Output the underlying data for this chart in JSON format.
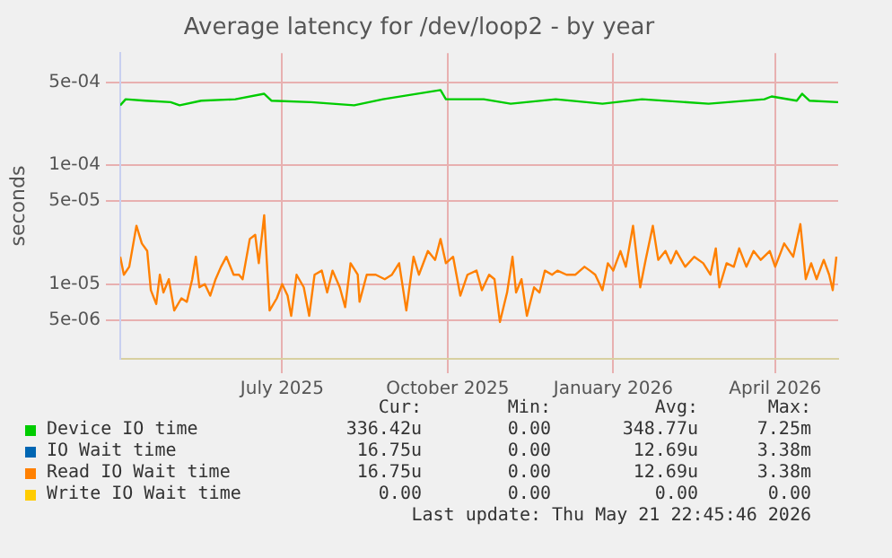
{
  "chart_data": {
    "type": "line",
    "title": "Average latency for /dev/loop2 - by year",
    "ylabel": "seconds",
    "log": "y",
    "grid": true,
    "legend": "bottom",
    "marker": "none",
    "line_style": "solid",
    "xlim": [
      "2025-04-17",
      "2026-05-21"
    ],
    "xticks": [
      {
        "value": "2025-07-16",
        "label": "July 2025"
      },
      {
        "value": "2025-10-16",
        "label": "October 2025"
      },
      {
        "value": "2026-01-16",
        "label": "January 2026"
      },
      {
        "value": "2026-04-16",
        "label": "April 2026"
      }
    ],
    "ylim": [
      2.35e-06,
      0.00088
    ],
    "yticks": [
      {
        "value": 5e-06,
        "label": "5e-06"
      },
      {
        "value": 1e-05,
        "label": "1e-05"
      },
      {
        "value": 5e-05,
        "label": "5e-05"
      },
      {
        "value": 0.0001,
        "label": "1e-04"
      },
      {
        "value": 0.0005,
        "label": "5e-04"
      }
    ],
    "series": [
      {
        "name": "Device IO time",
        "color": "#00cc00",
        "x": [
          "2025-04-17",
          "2025-04-20",
          "2025-05-01",
          "2025-05-15",
          "2025-05-20",
          "2025-06-01",
          "2025-06-20",
          "2025-07-06",
          "2025-07-10",
          "2025-08-01",
          "2025-08-25",
          "2025-09-10",
          "2025-10-12",
          "2025-10-15",
          "2025-11-05",
          "2025-11-20",
          "2025-12-15",
          "2026-01-01",
          "2026-01-10",
          "2026-02-01",
          "2026-03-10",
          "2026-04-10",
          "2026-04-14",
          "2026-04-28",
          "2026-05-01",
          "2026-05-05",
          "2026-05-21"
        ],
        "values": [
          0.00032,
          0.00036,
          0.00035,
          0.00034,
          0.00032,
          0.00035,
          0.00036,
          0.0004,
          0.00035,
          0.00034,
          0.00032,
          0.00036,
          0.00043,
          0.00036,
          0.00036,
          0.00033,
          0.00036,
          0.00034,
          0.00033,
          0.00036,
          0.00033,
          0.00036,
          0.00038,
          0.00035,
          0.0004,
          0.00035,
          0.00034
        ]
      },
      {
        "name": "IO Wait time",
        "color": "#0066b3"
      },
      {
        "name": "Read IO Wait time",
        "color": "#ff8000",
        "x": [
          "2025-04-17",
          "2025-04-19",
          "2025-04-22",
          "2025-04-26",
          "2025-04-29",
          "2025-05-02",
          "2025-05-04",
          "2025-05-07",
          "2025-05-09",
          "2025-05-11",
          "2025-05-14",
          "2025-05-17",
          "2025-05-21",
          "2025-05-24",
          "2025-05-27",
          "2025-05-29",
          "2025-05-31",
          "2025-06-03",
          "2025-06-06",
          "2025-06-09",
          "2025-06-12",
          "2025-06-15",
          "2025-06-19",
          "2025-06-22",
          "2025-06-24",
          "2025-06-28",
          "2025-07-01",
          "2025-07-03",
          "2025-07-06",
          "2025-07-09",
          "2025-07-13",
          "2025-07-16",
          "2025-07-19",
          "2025-07-21",
          "2025-07-24",
          "2025-07-28",
          "2025-07-31",
          "2025-08-03",
          "2025-08-07",
          "2025-08-10",
          "2025-08-13",
          "2025-08-17",
          "2025-08-20",
          "2025-08-23",
          "2025-08-27",
          "2025-08-28",
          "2025-09-01",
          "2025-09-06",
          "2025-09-11",
          "2025-09-15",
          "2025-09-19",
          "2025-09-23",
          "2025-09-27",
          "2025-09-30",
          "2025-10-05",
          "2025-10-09",
          "2025-10-12",
          "2025-10-15",
          "2025-10-19",
          "2025-10-23",
          "2025-10-27",
          "2025-11-01",
          "2025-11-04",
          "2025-11-08",
          "2025-11-11",
          "2025-11-14",
          "2025-11-18",
          "2025-11-21",
          "2025-11-23",
          "2025-11-26",
          "2025-11-29",
          "2025-12-03",
          "2025-12-06",
          "2025-12-09",
          "2025-12-13",
          "2025-12-16",
          "2025-12-21",
          "2025-12-26",
          "2025-12-31",
          "2026-01-03",
          "2026-01-06",
          "2026-01-10",
          "2026-01-13",
          "2026-01-16",
          "2026-01-20",
          "2026-01-23",
          "2026-01-27",
          "2026-01-31",
          "2026-02-03",
          "2026-02-07",
          "2026-02-10",
          "2026-02-14",
          "2026-02-17",
          "2026-02-20",
          "2026-02-25",
          "2026-03-02",
          "2026-03-07",
          "2026-03-11",
          "2026-03-14",
          "2026-03-16",
          "2026-03-20",
          "2026-03-24",
          "2026-03-27",
          "2026-03-31",
          "2026-04-04",
          "2026-04-08",
          "2026-04-13",
          "2026-04-16",
          "2026-04-21",
          "2026-04-26",
          "2026-04-30",
          "2026-05-03",
          "2026-05-06",
          "2026-05-09",
          "2026-05-13",
          "2026-05-16",
          "2026-05-18",
          "2026-05-20"
        ],
        "values": [
          1.7e-05,
          1.2e-05,
          1.4e-05,
          3.1e-05,
          2.2e-05,
          1.9e-05,
          8.9e-06,
          6.8e-06,
          1.2e-05,
          8.5e-06,
          1.1e-05,
          6e-06,
          7.6e-06,
          7.1e-06,
          1.1e-05,
          1.7e-05,
          9.4e-06,
          1e-05,
          8e-06,
          1.1e-05,
          1.4e-05,
          1.7e-05,
          1.2e-05,
          1.2e-05,
          1.1e-05,
          2.4e-05,
          2.6e-05,
          1.5e-05,
          3.8e-05,
          6e-06,
          7.6e-06,
          1e-05,
          8e-06,
          5.4e-06,
          1.2e-05,
          9.4e-06,
          5.4e-06,
          1.2e-05,
          1.3e-05,
          8.5e-06,
          1.3e-05,
          9.4e-06,
          6.4e-06,
          1.5e-05,
          1.2e-05,
          7.1e-06,
          1.2e-05,
          1.2e-05,
          1.1e-05,
          1.2e-05,
          1.5e-05,
          6e-06,
          1.7e-05,
          1.2e-05,
          1.9e-05,
          1.6e-05,
          2.4e-05,
          1.5e-05,
          1.7e-05,
          8e-06,
          1.2e-05,
          1.3e-05,
          8.9e-06,
          1.2e-05,
          1.1e-05,
          4.8e-06,
          8.5e-06,
          1.7e-05,
          8.5e-06,
          1.1e-05,
          5.4e-06,
          9.4e-06,
          8.5e-06,
          1.3e-05,
          1.2e-05,
          1.3e-05,
          1.2e-05,
          1.2e-05,
          1.4e-05,
          1.3e-05,
          1.2e-05,
          8.9e-06,
          1.5e-05,
          1.3e-05,
          1.9e-05,
          1.4e-05,
          3.1e-05,
          9.4e-06,
          1.6e-05,
          3.1e-05,
          1.6e-05,
          1.9e-05,
          1.5e-05,
          1.9e-05,
          1.4e-05,
          1.7e-05,
          1.5e-05,
          1.2e-05,
          2e-05,
          9.4e-06,
          1.5e-05,
          1.4e-05,
          2e-05,
          1.4e-05,
          1.9e-05,
          1.6e-05,
          1.9e-05,
          1.4e-05,
          2.2e-05,
          1.7e-05,
          3.2e-05,
          1.1e-05,
          1.5e-05,
          1.1e-05,
          1.6e-05,
          1.2e-05,
          8.9e-06,
          1.7e-05
        ]
      },
      {
        "name": "Write IO Wait time",
        "color": "#ffcc00"
      }
    ],
    "annotations": [
      "Cur:",
      "Min:",
      "Avg:",
      "Max:",
      "336.42u",
      "0.00",
      "348.77u",
      "7.25m",
      "16.75u",
      "0.00",
      "12.69u",
      "3.38m",
      "16.75u",
      "0.00",
      "12.69u",
      "3.38m",
      "0.00",
      "0.00",
      "0.00",
      "0.00",
      "Last update: Thu May 21 22:45:46 2026"
    ]
  }
}
